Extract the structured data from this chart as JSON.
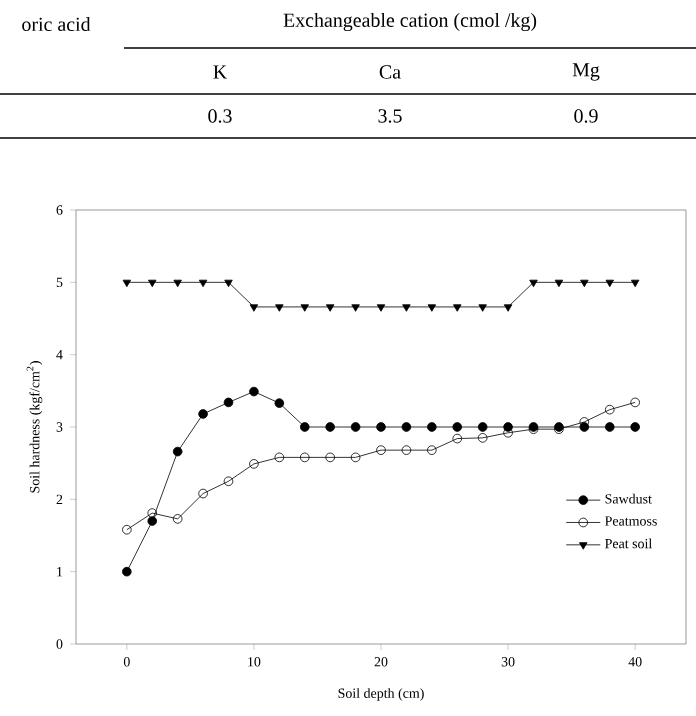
{
  "chart_data": {
    "type": "line",
    "annotations": [
      "oric acid",
      "Exchangeable cation (cmol /kg)",
      "K",
      "Ca",
      "Mg",
      "0.3",
      "3.5",
      "0.9"
    ],
    "x": [
      0,
      2,
      4,
      6,
      8,
      10,
      12,
      14,
      16,
      18,
      20,
      22,
      24,
      26,
      28,
      30,
      32,
      34,
      36,
      38,
      40
    ],
    "series": [
      {
        "name": "Sawdust",
        "color": "#000000",
        "marker": "circle",
        "values": [
          1.0,
          1.7,
          2.66,
          3.18,
          3.34,
          3.49,
          3.33,
          3.0,
          3.0,
          3.0,
          3.0,
          3.0,
          3.0,
          3.0,
          3.0,
          3.0,
          3.0,
          3.0,
          3.0,
          3.0,
          3.0
        ]
      },
      {
        "name": "Peatmoss",
        "color": "#000000",
        "marker": "open circle",
        "values": [
          1.58,
          1.81,
          1.73,
          2.08,
          2.25,
          2.49,
          2.58,
          2.58,
          2.58,
          2.58,
          2.68,
          2.68,
          2.68,
          2.84,
          2.85,
          2.92,
          2.97,
          2.97,
          3.07,
          3.24,
          3.34
        ]
      },
      {
        "name": "Peat soil",
        "color": "#000000",
        "marker": "triangle down",
        "values": [
          5.0,
          5.0,
          5.0,
          5.0,
          5.0,
          4.66,
          4.66,
          4.66,
          4.66,
          4.66,
          4.66,
          4.66,
          4.66,
          4.66,
          4.66,
          4.66,
          5.0,
          5.0,
          5.0,
          5.0,
          5.0
        ]
      }
    ],
    "xlabel": "Soil depth (cm)",
    "ylabel": "Soil hardness (kgf/cm$^{2}$)",
    "xlim": [
      -4,
      44
    ],
    "xticks": [
      0,
      10,
      20,
      30,
      40
    ],
    "ylim": [
      0,
      6
    ],
    "yticks": [
      0,
      1,
      2,
      3,
      4,
      5,
      6
    ],
    "legend": "right",
    "grid": false,
    "line_style": "solid"
  }
}
